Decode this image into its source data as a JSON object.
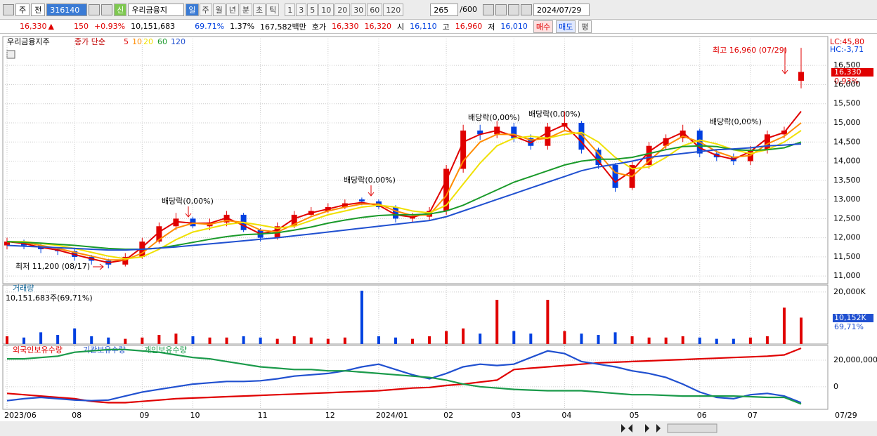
{
  "toolbar": {
    "market": "주",
    "type": "전",
    "code": "316140",
    "name": "우리금융지",
    "credit": "신",
    "periods": [
      "일",
      "주",
      "월",
      "년",
      "분",
      "초",
      "틱"
    ],
    "intervals": [
      "1",
      "3",
      "5",
      "10",
      "20",
      "30",
      "60",
      "120"
    ],
    "count": "265",
    "max": "/600",
    "date": "2024/07/29"
  },
  "quote": {
    "price": "16,330",
    "arrow": "▲",
    "change": "150",
    "rate": "+0.93%",
    "volume": "10,151,683",
    "volume_ratio": "69.71%",
    "turnover": "1.37%",
    "amount": "167,582백만",
    "ask_label": "호가",
    "ask": "16,330",
    "bid": "16,320",
    "open_label": "시",
    "open": "16,110",
    "high_label": "고",
    "high": "16,960",
    "low_label": "저",
    "low": "16,010",
    "buy": "매수",
    "sell": "매도",
    "avg": "평"
  },
  "chart_data": [
    {
      "type": "candlestick",
      "title": "우리금융지주",
      "subtitle": "종가 단순",
      "categories": [
        "2023/06",
        null,
        null,
        null,
        "08",
        null,
        null,
        null,
        "09",
        null,
        null,
        "10",
        null,
        null,
        null,
        "11",
        null,
        null,
        null,
        "12",
        null,
        null,
        "2024/01",
        null,
        null,
        null,
        "02",
        null,
        null,
        null,
        "03",
        null,
        null,
        "04",
        null,
        null,
        null,
        "05",
        null,
        null,
        null,
        "06",
        null,
        null,
        "07",
        null,
        null,
        null
      ],
      "last_date": "07/29",
      "open": [
        11800,
        11900,
        11800,
        11700,
        11650,
        11500,
        11400,
        11300,
        11500,
        11900,
        12300,
        12500,
        12300,
        12400,
        12600,
        12200,
        12000,
        12300,
        12600,
        12700,
        12800,
        13000,
        12950,
        12800,
        12500,
        12550,
        12700,
        13800,
        14800,
        14700,
        14900,
        14600,
        14400,
        14900,
        15000,
        14300,
        13900,
        13300,
        13900,
        14400,
        14600,
        14800,
        14200,
        14100,
        14000,
        14300,
        14700,
        16100
      ],
      "high": [
        12000,
        11950,
        11850,
        11750,
        11700,
        11550,
        11450,
        11600,
        12000,
        12400,
        12650,
        12550,
        12500,
        12700,
        12650,
        12250,
        12400,
        12700,
        12800,
        12900,
        13000,
        13050,
        13000,
        12850,
        12650,
        12800,
        13900,
        14950,
        14950,
        15050,
        15000,
        14700,
        15000,
        15300,
        15050,
        14350,
        13950,
        14000,
        14500,
        14700,
        14950,
        14850,
        14300,
        14200,
        14400,
        14800,
        14900,
        16960
      ],
      "low": [
        11700,
        11700,
        11600,
        11550,
        11400,
        11300,
        11200,
        11250,
        11450,
        11850,
        12200,
        12250,
        12200,
        12300,
        12150,
        11900,
        11950,
        12250,
        12550,
        12650,
        12750,
        12850,
        12750,
        12400,
        12400,
        12450,
        12600,
        13700,
        14550,
        14600,
        14500,
        14300,
        14300,
        14800,
        14200,
        13800,
        13200,
        13250,
        13800,
        14300,
        14500,
        14100,
        14000,
        13900,
        13900,
        14200,
        14600,
        15900
      ],
      "close": [
        11900,
        11800,
        11700,
        11650,
        11500,
        11400,
        11300,
        11500,
        11900,
        12300,
        12500,
        12300,
        12400,
        12600,
        12200,
        12000,
        12300,
        12600,
        12700,
        12800,
        12900,
        12950,
        12800,
        12500,
        12550,
        12700,
        13800,
        14800,
        14700,
        14900,
        14600,
        14400,
        14900,
        15000,
        14300,
        13900,
        13300,
        13900,
        14400,
        14600,
        14800,
        14200,
        14100,
        14000,
        14300,
        14700,
        14800,
        16330
      ],
      "up_color": "#e00000",
      "down_color": "#0040e0",
      "series": [
        {
          "name": "5",
          "color": "#e00000",
          "values": [
            11900,
            11850,
            11750,
            11680,
            11560,
            11450,
            11350,
            11420,
            11750,
            12150,
            12420,
            12380,
            12380,
            12520,
            12320,
            12100,
            12200,
            12500,
            12650,
            12750,
            12860,
            12920,
            12850,
            12600,
            12540,
            12650,
            13500,
            14500,
            14700,
            14800,
            14650,
            14480,
            14750,
            14950,
            14500,
            14000,
            13450,
            13750,
            14250,
            14550,
            14750,
            14350,
            14150,
            14050,
            14250,
            14600,
            14750,
            15300
          ]
        },
        {
          "name": "10",
          "color": "#ff8c00",
          "values": [
            11900,
            11880,
            11800,
            11720,
            11620,
            11520,
            11420,
            11420,
            11600,
            11950,
            12250,
            12380,
            12350,
            12450,
            12400,
            12200,
            12150,
            12350,
            12550,
            12700,
            12800,
            12880,
            12880,
            12700,
            12580,
            12600,
            13100,
            14000,
            14500,
            14700,
            14700,
            14550,
            14600,
            14800,
            14700,
            14200,
            13700,
            13600,
            14000,
            14400,
            14650,
            14500,
            14250,
            14100,
            14150,
            14450,
            14650,
            15000
          ]
        },
        {
          "name": "20",
          "color": "#f0e000",
          "values": [
            11900,
            11900,
            11850,
            11800,
            11720,
            11620,
            11520,
            11450,
            11500,
            11700,
            11950,
            12150,
            12250,
            12350,
            12400,
            12330,
            12250,
            12300,
            12450,
            12600,
            12700,
            12800,
            12850,
            12800,
            12700,
            12650,
            12850,
            13400,
            13950,
            14400,
            14600,
            14650,
            14600,
            14700,
            14750,
            14500,
            14100,
            13800,
            13850,
            14100,
            14400,
            14550,
            14450,
            14300,
            14200,
            14300,
            14500,
            14800
          ]
        },
        {
          "name": "60",
          "color": "#1a9a2a",
          "values": [
            11900,
            11880,
            11860,
            11830,
            11800,
            11760,
            11720,
            11700,
            11700,
            11730,
            11800,
            11880,
            11960,
            12030,
            12080,
            12100,
            12130,
            12200,
            12280,
            12380,
            12460,
            12530,
            12580,
            12600,
            12600,
            12620,
            12700,
            12850,
            13050,
            13250,
            13450,
            13600,
            13750,
            13900,
            14000,
            14050,
            14050,
            14100,
            14200,
            14300,
            14380,
            14400,
            14380,
            14300,
            14280,
            14300,
            14350,
            14500
          ]
        },
        {
          "name": "120",
          "color": "#2050d0",
          "values": [
            11800,
            11780,
            11760,
            11740,
            11720,
            11700,
            11680,
            11680,
            11700,
            11730,
            11760,
            11800,
            11840,
            11880,
            11920,
            11960,
            12000,
            12050,
            12100,
            12150,
            12200,
            12250,
            12300,
            12350,
            12400,
            12450,
            12550,
            12700,
            12850,
            13000,
            13150,
            13300,
            13450,
            13600,
            13750,
            13850,
            13920,
            14000,
            14100,
            14150,
            14200,
            14250,
            14300,
            14320,
            14350,
            14400,
            14420,
            14450
          ]
        }
      ],
      "ylim": [
        10820,
        17200
      ],
      "yticks": [
        {
          "value": 11000,
          "label": "11,000"
        },
        {
          "value": 11500,
          "label": "11,500"
        },
        {
          "value": 12000,
          "label": "12,000"
        },
        {
          "value": 12500,
          "label": "12,500"
        },
        {
          "value": 13000,
          "label": "13,000"
        },
        {
          "value": 13500,
          "label": "13,500"
        },
        {
          "value": 14000,
          "label": "14,000"
        },
        {
          "value": 14500,
          "label": "14,500"
        },
        {
          "value": 15000,
          "label": "15,000"
        },
        {
          "value": 15500,
          "label": "15,500"
        },
        {
          "value": 16000,
          "label": "16,000"
        },
        {
          "value": 16500,
          "label": "16,500"
        }
      ],
      "grid": true,
      "annotations": {
        "high": "최고 16,960 (07/29)",
        "low": "최저 11,200 (08/17)",
        "dividend": [
          "배당락(0,00%)",
          "배당락(0,00%)",
          "배당락(0,00%)",
          "배당락(0,00%)",
          "배당락(0,00%)"
        ]
      },
      "right_labels": {
        "lc": "LC:45,80",
        "hc": "HC:-3,71",
        "price": "16,330",
        "change": "0,93%"
      }
    },
    {
      "type": "bar",
      "title": "거래량",
      "subtitle": "10,151,683주(69,71%)",
      "values": [
        3000,
        2500,
        4500,
        3500,
        6000,
        3000,
        2500,
        2000,
        2500,
        3500,
        4000,
        3000,
        2500,
        2500,
        3000,
        2500,
        2000,
        3000,
        2500,
        2000,
        2500,
        20500,
        3000,
        2500,
        2000,
        3000,
        5000,
        6000,
        4000,
        17000,
        5000,
        4000,
        17000,
        5000,
        4000,
        3500,
        4500,
        3000,
        2500,
        2500,
        3000,
        2500,
        2000,
        2000,
        2500,
        3000,
        14000,
        10152
      ],
      "ylim": [
        0,
        21600
      ],
      "yticks": [
        {
          "value": 20000,
          "label": "20,000K"
        }
      ],
      "current_label": "10,152K",
      "current_ratio": "69,71%"
    },
    {
      "type": "line",
      "series": [
        {
          "name": "외국인보유수량",
          "color": "#e00000",
          "values": [
            -5000000,
            -6000000,
            -7000000,
            -8000000,
            -9000000,
            -11000000,
            -12000000,
            -12000000,
            -11000000,
            -10000000,
            -9000000,
            -8500000,
            -8000000,
            -7500000,
            -7000000,
            -6500000,
            -6000000,
            -5500000,
            -5000000,
            -4500000,
            -4000000,
            -3500000,
            -3000000,
            -2000000,
            -1000000,
            -500000,
            1000000,
            2000000,
            3500000,
            5000000,
            13000000,
            14000000,
            15000000,
            16000000,
            17000000,
            18000000,
            18500000,
            19000000,
            19500000,
            20000000,
            20500000,
            21000000,
            21500000,
            22000000,
            22500000,
            23000000,
            24000000,
            29000000
          ]
        },
        {
          "name": "기관보유수량",
          "color": "#2050d0",
          "values": [
            -10500000,
            -9000000,
            -8000000,
            -9000000,
            -10000000,
            -10500000,
            -10000000,
            -7000000,
            -4000000,
            -2000000,
            0,
            2000000,
            3000000,
            4000000,
            4000000,
            4500000,
            6000000,
            8000000,
            9000000,
            10000000,
            12000000,
            15000000,
            17000000,
            13000000,
            9000000,
            6000000,
            10000000,
            15000000,
            17000000,
            16000000,
            17000000,
            22000000,
            27000000,
            25000000,
            19000000,
            17000000,
            15000000,
            12000000,
            10000000,
            7000000,
            2000000,
            -4000000,
            -8000000,
            -9000000,
            -6000000,
            -5000000,
            -7000000,
            -12000000
          ]
        },
        {
          "name": "개인보유수량",
          "color": "#1a9a4a",
          "values": [
            21000000,
            21000000,
            22000000,
            23000000,
            26000000,
            27000000,
            28000000,
            28000000,
            27000000,
            26000000,
            24000000,
            22000000,
            21000000,
            19000000,
            17000000,
            15000000,
            14000000,
            13000000,
            13000000,
            12000000,
            12000000,
            11000000,
            10000000,
            9000000,
            8000000,
            7000000,
            5000000,
            2000000,
            0,
            -1000000,
            -2000000,
            -2500000,
            -3000000,
            -3000000,
            -3000000,
            -4000000,
            -5000000,
            -6000000,
            -6000000,
            -6500000,
            -7000000,
            -7000000,
            -7000000,
            -7000000,
            -7500000,
            -8000000,
            -8000000,
            -13000000
          ]
        }
      ],
      "ylim": [
        -17000000,
        29000000
      ],
      "yticks": [
        {
          "value": 20000000,
          "label": "20,000,000"
        },
        0
      ]
    }
  ]
}
